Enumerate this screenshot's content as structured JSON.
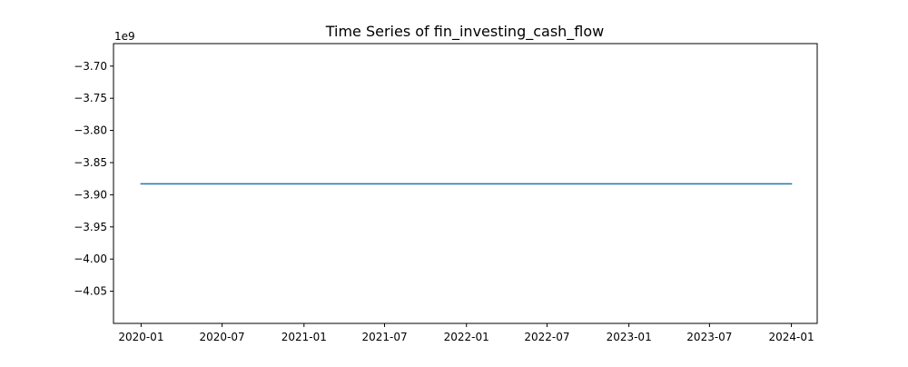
{
  "chart_data": {
    "type": "line",
    "title": "Time Series of fin_investing_cash_flow",
    "xlabel": "",
    "ylabel": "",
    "y_offset_label": "1e9",
    "y_scale": 1000000000,
    "grid": false,
    "legend": "none",
    "colors": {
      "line": "#1f77b4",
      "axes": "#000000",
      "background": "#ffffff"
    },
    "xlim": [
      "2019-10-31",
      "2024-02-28"
    ],
    "ylim": [
      -4.1,
      -3.665
    ],
    "x_ticks": [
      {
        "value": "2020-01-01",
        "label": "2020-01"
      },
      {
        "value": "2020-07-01",
        "label": "2020-07"
      },
      {
        "value": "2021-01-01",
        "label": "2021-01"
      },
      {
        "value": "2021-07-01",
        "label": "2021-07"
      },
      {
        "value": "2022-01-01",
        "label": "2022-01"
      },
      {
        "value": "2022-07-01",
        "label": "2022-07"
      },
      {
        "value": "2023-01-01",
        "label": "2023-01"
      },
      {
        "value": "2023-07-01",
        "label": "2023-07"
      },
      {
        "value": "2024-01-01",
        "label": "2024-01"
      }
    ],
    "y_ticks": [
      {
        "value": -3.7,
        "label": "−3.70"
      },
      {
        "value": -3.75,
        "label": "−3.75"
      },
      {
        "value": -3.8,
        "label": "−3.80"
      },
      {
        "value": -3.85,
        "label": "−3.85"
      },
      {
        "value": -3.9,
        "label": "−3.90"
      },
      {
        "value": -3.95,
        "label": "−3.95"
      },
      {
        "value": -4.0,
        "label": "−4.00"
      },
      {
        "value": -4.05,
        "label": "−4.05"
      }
    ],
    "series": [
      {
        "x": [
          "2020-01-01",
          "2024-01-01"
        ],
        "y": [
          -3.883,
          -3.883
        ]
      }
    ]
  }
}
